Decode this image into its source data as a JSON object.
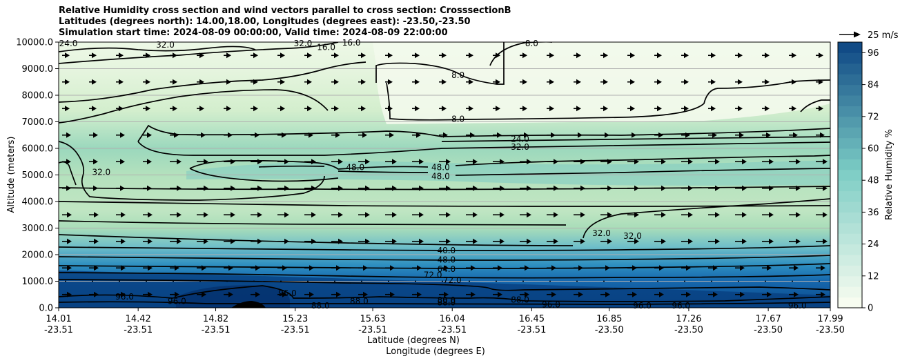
{
  "title_lines": [
    "Relative Humidity cross section and wind vectors parallel to cross section: CrosssectionB",
    "Latitudes (degrees north): 14.00,18.00, Longitudes (degrees east): -23.50,-23.50",
    "Simulation start time: 2024-08-09 00:00:00, Valid time: 2024-08-09 22:00:00"
  ],
  "quiver_key_label": "25 m/s",
  "colorbar_label": "Relative Humidity %",
  "chart_data": {
    "type": "heatmap",
    "y_label": "Altitude (meters)",
    "x_label_lat": "Latitude (degrees N)",
    "x_label_lon": "Longitude (degrees E)",
    "ylim": [
      0,
      10000
    ],
    "y_ticks": [
      "0.0",
      "1000.0",
      "2000.0",
      "3000.0",
      "4000.0",
      "5000.0",
      "6000.0",
      "7000.0",
      "8000.0",
      "9000.0",
      "10000.0"
    ],
    "x_ticks": [
      {
        "lat": "14.01",
        "lon": "-23.51"
      },
      {
        "lat": "14.42",
        "lon": "-23.51"
      },
      {
        "lat": "14.82",
        "lon": "-23.51"
      },
      {
        "lat": "15.23",
        "lon": "-23.51"
      },
      {
        "lat": "15.63",
        "lon": "-23.51"
      },
      {
        "lat": "16.04",
        "lon": "-23.51"
      },
      {
        "lat": "16.45",
        "lon": "-23.51"
      },
      {
        "lat": "16.85",
        "lon": "-23.50"
      },
      {
        "lat": "17.26",
        "lon": "-23.50"
      },
      {
        "lat": "17.67",
        "lon": "-23.50"
      },
      {
        "lat": "17.99",
        "lon": "-23.50"
      }
    ],
    "grid": "horizontal",
    "colorbar": {
      "range": [
        0,
        100
      ],
      "step": 4,
      "ticks": [
        "0",
        "12",
        "24",
        "36",
        "48",
        "60",
        "72",
        "84",
        "96"
      ],
      "color_low": "#f7fcf0",
      "color_mid": "#7bccc4",
      "color_high": "#084081"
    },
    "contour_labels": [
      {
        "text": "8.0",
        "x": 16.45,
        "y": 9950
      },
      {
        "text": "8.0",
        "x": 16.07,
        "y": 8750
      },
      {
        "text": "8.0",
        "x": 16.07,
        "y": 7100
      },
      {
        "text": "16.0",
        "x": 15.39,
        "y": 9810
      },
      {
        "text": "16.0",
        "x": 15.52,
        "y": 9970
      },
      {
        "text": "32.0",
        "x": 14.56,
        "y": 9900
      },
      {
        "text": "32.0",
        "x": 15.27,
        "y": 9950
      },
      {
        "text": "24.0",
        "x": 14.06,
        "y": 9950
      },
      {
        "text": "24.0",
        "x": 16.39,
        "y": 6350
      },
      {
        "text": "32.0",
        "x": 16.39,
        "y": 6050
      },
      {
        "text": "32.0",
        "x": 14.23,
        "y": 5100
      },
      {
        "text": "48.0",
        "x": 15.54,
        "y": 5280
      },
      {
        "text": "48.0",
        "x": 15.98,
        "y": 5280
      },
      {
        "text": "48.0",
        "x": 15.98,
        "y": 4950
      },
      {
        "text": "32.0",
        "x": 16.81,
        "y": 2800
      },
      {
        "text": "32.0",
        "x": 16.97,
        "y": 2700
      },
      {
        "text": "40.0",
        "x": 16.01,
        "y": 2150
      },
      {
        "text": "48.0",
        "x": 16.01,
        "y": 1800
      },
      {
        "text": "64.0",
        "x": 16.01,
        "y": 1450
      },
      {
        "text": "72.0",
        "x": 15.94,
        "y": 1230
      },
      {
        "text": "72.0",
        "x": 16.04,
        "y": 1040
      },
      {
        "text": "80.0",
        "x": 16.01,
        "y": 280
      },
      {
        "text": "88.0",
        "x": 16.01,
        "y": 200
      },
      {
        "text": "88.0",
        "x": 16.39,
        "y": 300
      },
      {
        "text": "96.0",
        "x": 14.35,
        "y": 420
      },
      {
        "text": "96.0",
        "x": 14.62,
        "y": 250
      },
      {
        "text": "96.0",
        "x": 15.19,
        "y": 550
      },
      {
        "text": "88.0",
        "x": 15.36,
        "y": 80
      },
      {
        "text": "88.0",
        "x": 15.56,
        "y": 250
      },
      {
        "text": "96.0",
        "x": 16.55,
        "y": 120
      },
      {
        "text": "96.0",
        "x": 17.02,
        "y": 80
      },
      {
        "text": "96.0",
        "x": 17.22,
        "y": 80
      },
      {
        "text": "96.0",
        "x": 17.82,
        "y": 80
      },
      {
        "text": "96.0",
        "x": 18.43,
        "y": 80
      }
    ],
    "wind_reference_speed": 25
  }
}
